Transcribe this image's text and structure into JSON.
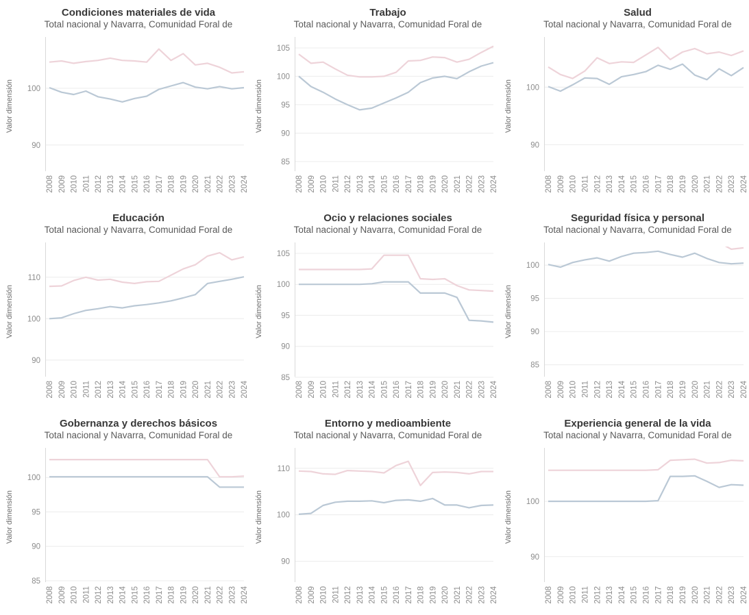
{
  "page": {
    "background": "#ffffff",
    "description_subtitle": "Total nacional y Navarra, Comunidad Foral de",
    "y_axis_title": "Valor dimensión"
  },
  "colors": {
    "series_nacional": "#bac8d5",
    "series_navarra": "#eed3d9",
    "grid": "#ececec",
    "axis_line": "#d9d9d9",
    "tick_label": "#8c8c8c",
    "axis_title": "#6e6e6e",
    "title": "#383838",
    "subtitle": "#595959",
    "background": "#ffffff"
  },
  "years": [
    2008,
    2009,
    2010,
    2011,
    2012,
    2013,
    2014,
    2015,
    2016,
    2017,
    2018,
    2019,
    2020,
    2021,
    2022,
    2023,
    2024
  ],
  "chart_data": [
    {
      "type": "line",
      "title": "Condiciones materiales de vida",
      "subtitle": "Total nacional y Navarra, Comunidad Foral de",
      "ylabel": "Valor dimensión",
      "yticks": [
        90,
        100
      ],
      "ylim": [
        85.4,
        108.3
      ],
      "series": [
        {
          "name": "Total nacional",
          "values": [
            100.1,
            99.3,
            98.9,
            99.5,
            98.5,
            98.1,
            97.6,
            98.2,
            98.6,
            99.8,
            100.4,
            101.0,
            100.2,
            99.9,
            100.3,
            99.9,
            100.1
          ]
        },
        {
          "name": "Navarra, Comunidad Foral de",
          "values": [
            104.6,
            104.8,
            104.4,
            104.7,
            104.9,
            105.3,
            104.9,
            104.8,
            104.6,
            106.9,
            104.9,
            106.1,
            104.1,
            104.4,
            103.7,
            102.7,
            102.9
          ]
        }
      ]
    },
    {
      "type": "line",
      "title": "Trabajo",
      "subtitle": "Total nacional y Navarra, Comunidad Foral de",
      "ylabel": "Valor dimensión",
      "yticks": [
        85,
        90,
        95,
        100,
        105
      ],
      "ylim": [
        83.3,
        106.2
      ],
      "series": [
        {
          "name": "Total nacional",
          "values": [
            100.0,
            98.2,
            97.2,
            96.0,
            95.0,
            94.1,
            94.4,
            95.3,
            96.2,
            97.2,
            98.9,
            99.7,
            100.0,
            99.6,
            100.8,
            101.8,
            102.4
          ]
        },
        {
          "name": "Navarra, Comunidad Foral de",
          "values": [
            103.9,
            102.3,
            102.5,
            101.3,
            100.2,
            99.9,
            99.9,
            100.0,
            100.7,
            102.7,
            102.8,
            103.4,
            103.3,
            102.5,
            103.0,
            104.2,
            105.3
          ]
        }
      ]
    },
    {
      "type": "line",
      "title": "Salud",
      "subtitle": "Total nacional y Navarra, Comunidad Foral de",
      "ylabel": "Valor dimensión",
      "yticks": [
        90,
        100
      ],
      "ylim": [
        85.4,
        108.0
      ],
      "series": [
        {
          "name": "Total nacional",
          "values": [
            100.1,
            99.3,
            100.4,
            101.6,
            101.5,
            100.5,
            101.8,
            102.2,
            102.7,
            103.8,
            103.1,
            104.0,
            102.1,
            101.3,
            103.2,
            102.0,
            103.4
          ]
        },
        {
          "name": "Navarra, Comunidad Foral de",
          "values": [
            103.5,
            102.2,
            101.5,
            102.8,
            105.1,
            104.1,
            104.4,
            104.3,
            105.6,
            106.9,
            104.8,
            106.1,
            106.7,
            105.8,
            106.1,
            105.5,
            106.3
          ]
        }
      ]
    },
    {
      "type": "line",
      "title": "Educación",
      "subtitle": "Total nacional y Navarra, Comunidad Foral de",
      "ylabel": "Valor dimensión",
      "yticks": [
        90,
        100,
        110
      ],
      "ylim": [
        86.0,
        117.4
      ],
      "series": [
        {
          "name": "Total nacional",
          "values": [
            100.0,
            100.2,
            101.2,
            102.0,
            102.4,
            102.9,
            102.6,
            103.1,
            103.4,
            103.8,
            104.3,
            105.0,
            105.8,
            108.5,
            109.0,
            109.5,
            110.1
          ]
        },
        {
          "name": "Navarra, Comunidad Foral de",
          "values": [
            107.8,
            107.9,
            109.2,
            110.0,
            109.3,
            109.5,
            108.8,
            108.5,
            108.9,
            109.0,
            110.5,
            112.0,
            113.0,
            115.1,
            115.9,
            114.2,
            114.9
          ]
        }
      ]
    },
    {
      "type": "line",
      "title": "Ocio y relaciones sociales",
      "subtitle": "Total nacional y Navarra, Comunidad Foral de",
      "ylabel": "Valor dimensión",
      "yticks": [
        85,
        90,
        95,
        100,
        105
      ],
      "ylim": [
        85.1,
        106.1
      ],
      "series": [
        {
          "name": "Total nacional",
          "values": [
            100.0,
            100.0,
            100.0,
            100.0,
            100.0,
            100.0,
            100.1,
            100.4,
            100.4,
            100.4,
            98.6,
            98.6,
            98.6,
            97.9,
            94.2,
            94.1,
            93.9
          ]
        },
        {
          "name": "Navarra, Comunidad Foral de",
          "values": [
            102.4,
            102.4,
            102.4,
            102.4,
            102.4,
            102.4,
            102.5,
            104.7,
            104.7,
            104.7,
            100.9,
            100.8,
            100.9,
            99.8,
            99.1,
            99.0,
            98.9
          ]
        }
      ]
    },
    {
      "type": "line",
      "title": "Seguridad física y personal",
      "subtitle": "Total nacional y Navarra, Comunidad Foral de",
      "ylabel": "Valor dimensión",
      "yticks": [
        85,
        90,
        95,
        100
      ],
      "ylim": [
        83.2,
        102.8
      ],
      "series": [
        {
          "name": "Total nacional",
          "values": [
            100.1,
            99.7,
            100.4,
            100.8,
            101.1,
            100.6,
            101.3,
            101.8,
            101.9,
            102.1,
            101.6,
            101.2,
            101.8,
            101.0,
            100.4,
            100.2,
            100.3
          ]
        },
        {
          "name": "Navarra, Comunidad Foral de",
          "values": [
            null,
            null,
            null,
            null,
            null,
            null,
            null,
            null,
            null,
            null,
            null,
            null,
            null,
            null,
            103.4,
            102.4,
            102.6
          ]
        }
      ]
    },
    {
      "type": "line",
      "title": "Gobernanza y derechos básicos",
      "subtitle": "Total nacional y Navarra, Comunidad Foral de",
      "ylabel": "Valor dimensión",
      "yticks": [
        85,
        90,
        95,
        100
      ],
      "ylim": [
        84.8,
        103.7
      ],
      "series": [
        {
          "name": "Total nacional",
          "values": [
            100.1,
            100.1,
            100.1,
            100.1,
            100.1,
            100.1,
            100.1,
            100.1,
            100.1,
            100.1,
            100.1,
            100.1,
            100.1,
            100.1,
            98.6,
            98.6,
            98.6
          ]
        },
        {
          "name": "Navarra, Comunidad Foral de",
          "values": [
            102.6,
            102.6,
            102.6,
            102.6,
            102.6,
            102.6,
            102.6,
            102.6,
            102.6,
            102.6,
            102.6,
            102.6,
            102.6,
            102.6,
            100.1,
            100.1,
            100.2
          ]
        }
      ]
    },
    {
      "type": "line",
      "title": "Entorno y medioambiente",
      "subtitle": "Total nacional y Navarra, Comunidad Foral de",
      "ylabel": "Valor dimensión",
      "yticks": [
        90,
        100,
        110
      ],
      "ylim": [
        85.5,
        113.5
      ],
      "series": [
        {
          "name": "Total nacional",
          "values": [
            100.1,
            100.3,
            102.0,
            102.7,
            102.9,
            102.9,
            103.0,
            102.6,
            103.1,
            103.2,
            102.9,
            103.5,
            102.1,
            102.1,
            101.5,
            102.0,
            102.1
          ]
        },
        {
          "name": "Navarra, Comunidad Foral de",
          "values": [
            109.4,
            109.3,
            108.8,
            108.7,
            109.5,
            109.4,
            109.3,
            109.0,
            110.6,
            111.5,
            106.3,
            109.1,
            109.2,
            109.1,
            108.8,
            109.3,
            109.3
          ]
        }
      ]
    },
    {
      "type": "line",
      "title": "Experiencia general de la vida",
      "subtitle": "Total nacional y Navarra, Comunidad Foral de",
      "ylabel": "Valor dimensión",
      "yticks": [
        90,
        100
      ],
      "ylim": [
        85.4,
        108.9
      ],
      "series": [
        {
          "name": "Total nacional",
          "values": [
            100.0,
            100.0,
            100.0,
            100.0,
            100.0,
            100.0,
            100.0,
            100.0,
            100.0,
            100.1,
            104.5,
            104.5,
            104.6,
            103.6,
            102.5,
            103.0,
            102.9
          ]
        },
        {
          "name": "Navarra, Comunidad Foral de",
          "values": [
            105.6,
            105.6,
            105.6,
            105.6,
            105.6,
            105.6,
            105.6,
            105.6,
            105.6,
            105.7,
            107.4,
            107.5,
            107.6,
            106.9,
            107.0,
            107.4,
            107.3
          ]
        }
      ]
    }
  ]
}
